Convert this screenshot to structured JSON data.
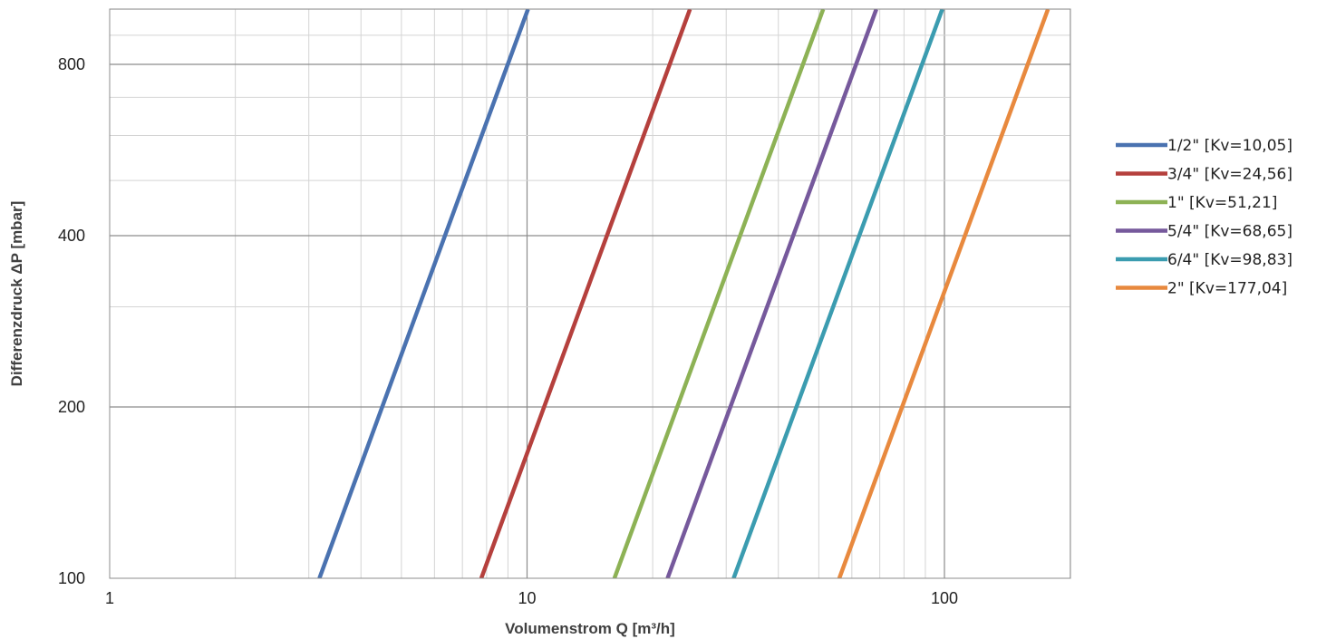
{
  "chart_data": {
    "type": "line",
    "title": "",
    "xlabel": "Volumenstrom Q [m³/h]",
    "ylabel": "Differenzdruck ΔP [mbar]",
    "x_scale": "log",
    "y_scale": "log",
    "xlim": [
      1,
      300
    ],
    "ylim": [
      100,
      1000
    ],
    "x_ticks": [
      {
        "value": 1,
        "label": "1"
      },
      {
        "value": 10,
        "label": "10"
      },
      {
        "value": 100,
        "label": "100"
      }
    ],
    "y_ticks": [
      {
        "value": 100,
        "label": "100"
      },
      {
        "value": 200,
        "label": "200"
      },
      {
        "value": 400,
        "label": "400"
      },
      {
        "value": 800,
        "label": "800"
      }
    ],
    "grid": true,
    "legend_position": "right",
    "series": [
      {
        "name": "1/2\" [Kv=10,05]",
        "kv": 10.05,
        "color": "#4a72b0",
        "x": [
          3.18,
          10.05
        ],
        "y": [
          100,
          1000
        ]
      },
      {
        "name": "3/4\" [Kv=24,56]",
        "kv": 24.56,
        "color": "#b5403d",
        "x": [
          7.77,
          24.56
        ],
        "y": [
          100,
          1000
        ]
      },
      {
        "name": "1\" [Kv=51,21]",
        "kv": 51.21,
        "color": "#8db255",
        "x": [
          16.19,
          51.21
        ],
        "y": [
          100,
          1000
        ]
      },
      {
        "name": "5/4\" [Kv=68,65]",
        "kv": 68.65,
        "color": "#76599c",
        "x": [
          21.71,
          68.65
        ],
        "y": [
          100,
          1000
        ]
      },
      {
        "name": "6/4\" [Kv=98,83]",
        "kv": 98.83,
        "color": "#3b9cb0",
        "x": [
          31.25,
          98.83
        ],
        "y": [
          100,
          1000
        ]
      },
      {
        "name": "2\" [Kv=177,04]",
        "kv": 177.04,
        "color": "#e8893e",
        "x": [
          55.99,
          177.04
        ],
        "y": [
          100,
          1000
        ]
      }
    ]
  }
}
